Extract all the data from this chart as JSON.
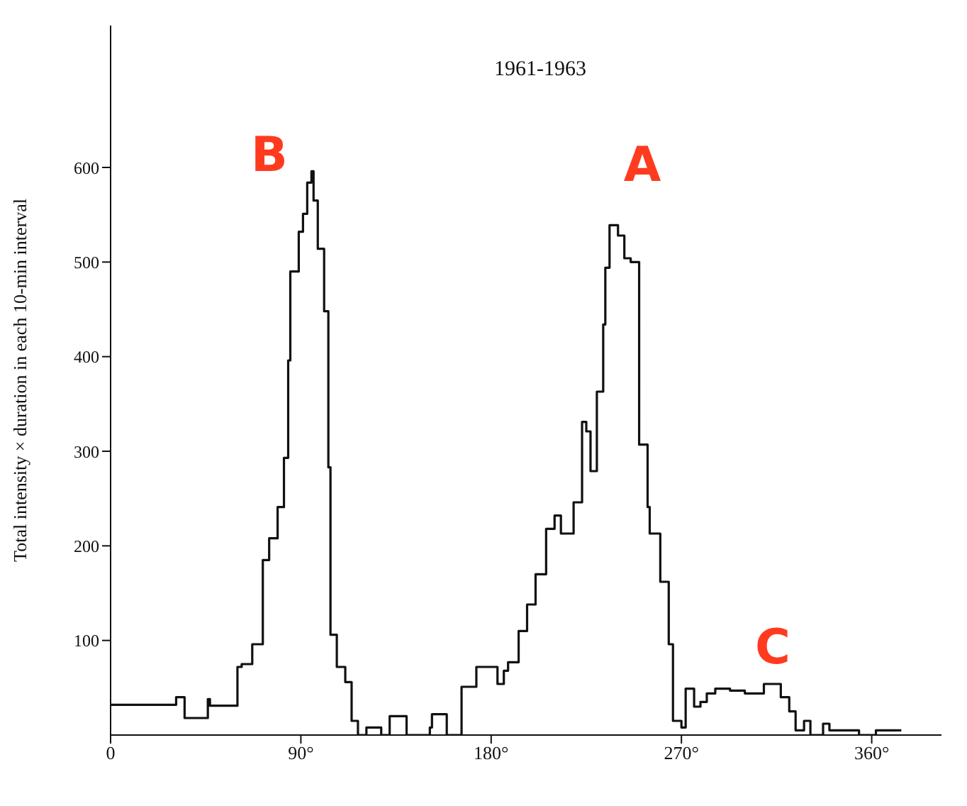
{
  "chart_data": {
    "type": "step",
    "title": "1961-1963",
    "ylabel": "Total intensity × duration in each 10-min interval",
    "x": [
      0,
      31,
      35,
      38,
      46,
      47,
      49,
      60,
      62,
      67,
      72,
      75,
      79,
      82,
      84,
      85,
      89,
      91,
      93,
      95,
      96,
      98,
      101,
      103,
      104,
      107,
      111,
      114,
      117,
      121,
      128,
      132,
      140,
      151,
      152,
      159,
      166,
      169,
      173,
      183,
      186,
      188,
      193,
      197,
      201,
      206,
      210,
      213,
      219,
      223,
      225,
      227,
      230,
      233,
      234,
      236,
      240,
      243,
      246,
      250,
      254,
      255,
      260,
      264,
      266,
      270,
      272,
      276,
      279,
      282,
      286,
      293,
      300,
      309,
      317,
      321,
      324,
      328,
      331,
      337,
      340,
      354,
      362,
      367,
      374
    ],
    "series": [
      {
        "color": "#111111",
        "values": [
          32,
          40,
          18,
          18,
          38,
          31,
          31,
          72,
          75,
          96,
          185,
          208,
          241,
          293,
          396,
          490,
          532,
          551,
          584,
          596,
          565,
          514,
          448,
          283,
          106,
          72,
          56,
          15,
          0,
          8,
          0,
          20,
          0,
          8,
          22,
          0,
          51,
          51,
          72,
          54,
          68,
          77,
          110,
          138,
          170,
          218,
          232,
          213,
          246,
          331,
          321,
          279,
          363,
          434,
          494,
          539,
          528,
          504,
          500,
          307,
          241,
          213,
          162,
          96,
          15,
          8,
          49,
          30,
          35,
          44,
          49,
          47,
          44,
          54,
          40,
          25,
          5,
          15,
          0,
          12,
          5,
          0,
          5,
          5,
          5
        ]
      }
    ],
    "xlim": [
      0,
      393
    ],
    "xticks": [
      0,
      {
        "value": 90,
        "label": "90°"
      },
      {
        "value": 180,
        "label": "180°"
      },
      {
        "value": 270,
        "label": "270°"
      },
      {
        "value": 360,
        "label": "360°"
      }
    ],
    "ylim": [
      0,
      750
    ],
    "yticks": [
      100,
      200,
      300,
      400,
      500,
      600
    ],
    "grid": false,
    "legend": false,
    "marker": "none",
    "line_style": "solid",
    "annotations": [
      "A",
      "B",
      "C"
    ]
  }
}
